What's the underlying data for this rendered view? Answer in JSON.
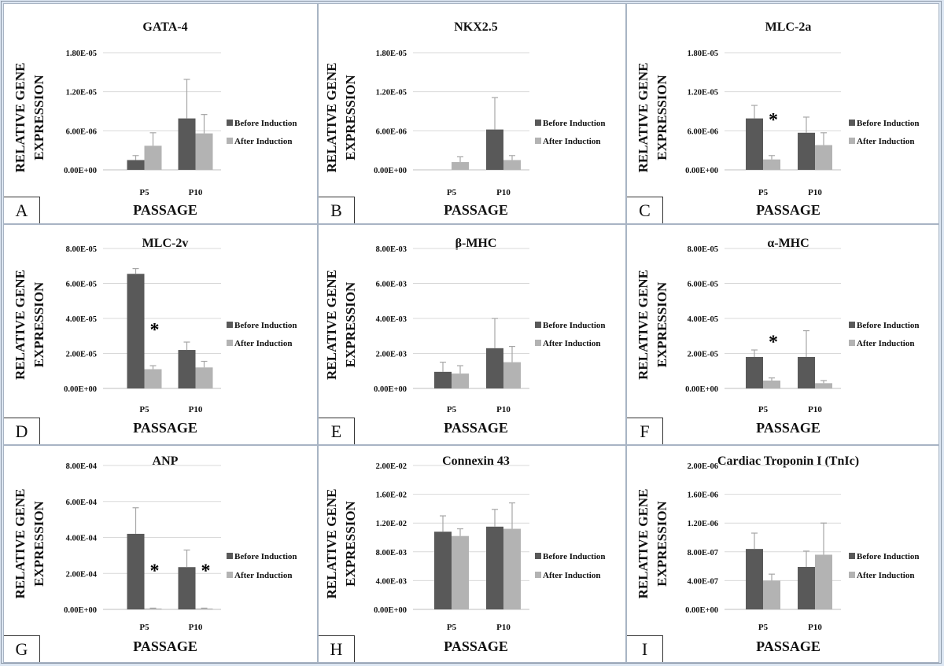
{
  "shared": {
    "ylabel_line1": "RELATIVE GENE",
    "ylabel_line2": "EXPRESSION",
    "xlabel": "PASSAGE",
    "categories": [
      "P5",
      "P10"
    ],
    "legend": [
      "Before Induction",
      "After Induction"
    ],
    "colors": {
      "before": "#595959",
      "after": "#b3b3b3",
      "grid": "#d9d9d9",
      "error": "#a6a6a6",
      "text": "#111111"
    }
  },
  "chart_data": [
    {
      "type": "bar",
      "letter": "A",
      "title": "GATA-4",
      "yticks": [
        "0.00E+00",
        "6.00E-06",
        "1.20E-05",
        "1.80E-05"
      ],
      "ylim": [
        0,
        1.8e-05
      ],
      "categories": [
        "P5",
        "P10"
      ],
      "series": [
        {
          "name": "Before Induction",
          "values": [
            1.5e-06,
            7.9e-06
          ],
          "errors": [
            7e-07,
            6e-06
          ]
        },
        {
          "name": "After Induction",
          "values": [
            3.7e-06,
            5.6e-06
          ],
          "errors": [
            2e-06,
            2.9e-06
          ]
        }
      ],
      "stars": []
    },
    {
      "type": "bar",
      "letter": "B",
      "title": "NKX2.5",
      "yticks": [
        "0.00E+00",
        "6.00E-06",
        "1.20E-05",
        "1.80E-05"
      ],
      "ylim": [
        0,
        1.8e-05
      ],
      "categories": [
        "P5",
        "P10"
      ],
      "series": [
        {
          "name": "Before Induction",
          "values": [
            0,
            6.2e-06
          ],
          "errors": [
            0,
            4.9e-06
          ]
        },
        {
          "name": "After Induction",
          "values": [
            1.2e-06,
            1.5e-06
          ],
          "errors": [
            8e-07,
            7e-07
          ]
        }
      ],
      "stars": []
    },
    {
      "type": "bar",
      "letter": "C",
      "title": "MLC-2a",
      "yticks": [
        "0.00E+00",
        "6.00E-06",
        "1.20E-05",
        "1.80E-05"
      ],
      "ylim": [
        0,
        1.8e-05
      ],
      "categories": [
        "P5",
        "P10"
      ],
      "series": [
        {
          "name": "Before Induction",
          "values": [
            7.9e-06,
            5.7e-06
          ],
          "errors": [
            2e-06,
            2.4e-06
          ]
        },
        {
          "name": "After Induction",
          "values": [
            1.6e-06,
            3.8e-06
          ],
          "errors": [
            6e-07,
            1.9e-06
          ]
        }
      ],
      "stars": [
        0
      ]
    },
    {
      "type": "bar",
      "letter": "D",
      "title": "MLC-2v",
      "yticks": [
        "0.00E+00",
        "2.00E-05",
        "4.00E-05",
        "6.00E-05",
        "8.00E-05"
      ],
      "ylim": [
        0,
        8e-05
      ],
      "categories": [
        "P5",
        "P10"
      ],
      "series": [
        {
          "name": "Before Induction",
          "values": [
            6.55e-05,
            2.2e-05
          ],
          "errors": [
            3e-06,
            4.5e-06
          ]
        },
        {
          "name": "After Induction",
          "values": [
            1.1e-05,
            1.2e-05
          ],
          "errors": [
            2e-06,
            3.5e-06
          ]
        }
      ],
      "stars": [
        0
      ]
    },
    {
      "type": "bar",
      "letter": "E",
      "title": "β-MHC",
      "yticks": [
        "0.00E+00",
        "2.00E-03",
        "4.00E-03",
        "6.00E-03",
        "8.00E-03"
      ],
      "ylim": [
        0,
        0.008
      ],
      "categories": [
        "P5",
        "P10"
      ],
      "series": [
        {
          "name": "Before Induction",
          "values": [
            0.00095,
            0.0023
          ],
          "errors": [
            0.00055,
            0.0017
          ]
        },
        {
          "name": "After Induction",
          "values": [
            0.00085,
            0.0015
          ],
          "errors": [
            0.00045,
            0.0009
          ]
        }
      ],
      "stars": []
    },
    {
      "type": "bar",
      "letter": "F",
      "title": "α-MHC",
      "yticks": [
        "0.00E+00",
        "2.00E-05",
        "4.00E-05",
        "6.00E-05",
        "8.00E-05"
      ],
      "ylim": [
        0,
        8e-05
      ],
      "categories": [
        "P5",
        "P10"
      ],
      "series": [
        {
          "name": "Before Induction",
          "values": [
            1.8e-05,
            1.8e-05
          ],
          "errors": [
            4e-06,
            1.5e-05
          ]
        },
        {
          "name": "After Induction",
          "values": [
            4.5e-06,
            3e-06
          ],
          "errors": [
            1.5e-06,
            1.5e-06
          ]
        }
      ],
      "stars": [
        0
      ]
    },
    {
      "type": "bar",
      "letter": "G",
      "title": "ANP",
      "yticks": [
        "0.00E+00",
        "2.00E-04",
        "4.00E-04",
        "6.00E-04",
        "8.00E-04"
      ],
      "ylim": [
        0,
        0.0008
      ],
      "categories": [
        "P5",
        "P10"
      ],
      "series": [
        {
          "name": "Before Induction",
          "values": [
            0.00042,
            0.000235
          ],
          "errors": [
            0.000145,
            9.5e-05
          ]
        },
        {
          "name": "After Induction",
          "values": [
            5e-06,
            5e-06
          ],
          "errors": [
            2e-06,
            2e-06
          ]
        }
      ],
      "stars": [
        0,
        1
      ]
    },
    {
      "type": "bar",
      "letter": "H",
      "title": "Connexin 43",
      "yticks": [
        "0.00E+00",
        "4.00E-03",
        "8.00E-03",
        "1.20E-02",
        "1.60E-02",
        "2.00E-02"
      ],
      "ylim": [
        0,
        0.02
      ],
      "categories": [
        "P5",
        "P10"
      ],
      "series": [
        {
          "name": "Before Induction",
          "values": [
            0.0108,
            0.0115
          ],
          "errors": [
            0.0022,
            0.0024
          ]
        },
        {
          "name": "After Induction",
          "values": [
            0.0102,
            0.0112
          ],
          "errors": [
            0.001,
            0.0036
          ]
        }
      ],
      "stars": []
    },
    {
      "type": "bar",
      "letter": "I",
      "title": "Cardiac Troponin I (TnIc)",
      "yticks": [
        "0.00E+00",
        "4.00E-07",
        "8.00E-07",
        "1.20E-06",
        "1.60E-06",
        "2.00E-06"
      ],
      "ylim": [
        0,
        2e-06
      ],
      "categories": [
        "P5",
        "P10"
      ],
      "series": [
        {
          "name": "Before Induction",
          "values": [
            8.4e-07,
            5.9e-07
          ],
          "errors": [
            2.2e-07,
            2.2e-07
          ]
        },
        {
          "name": "After Induction",
          "values": [
            4e-07,
            7.6e-07
          ],
          "errors": [
            9e-08,
            4.4e-07
          ]
        }
      ],
      "stars": []
    }
  ]
}
